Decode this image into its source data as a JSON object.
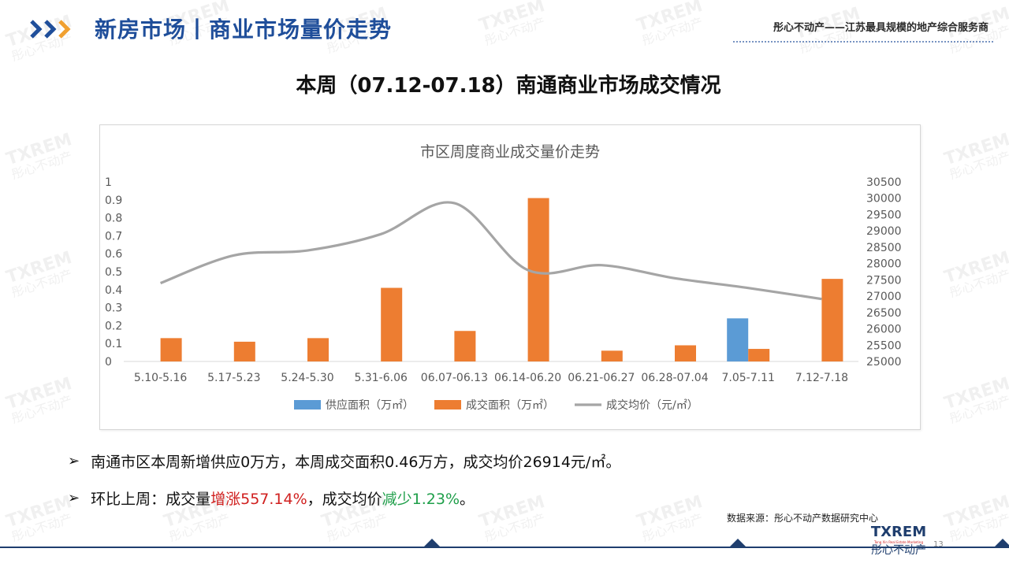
{
  "header": {
    "section_title": "新房市场丨商业市场量价走势",
    "tagline": "彤心不动产——江苏最具规模的地产综合服务商"
  },
  "main_title": "本周（07.12-07.18）南通商业市场成交情况",
  "chart_data": {
    "type": "bar",
    "title": "市区周度商业成交量价走势",
    "categories": [
      "5.10-5.16",
      "5.17-5.23",
      "5.24-5.30",
      "5.31-6.06",
      "06.07-06.13",
      "06.14-06.20",
      "06.21-06.27",
      "06.28-07.04",
      "7.05-7.11",
      "7.12-7.18"
    ],
    "series": [
      {
        "name": "供应面积（万㎡）",
        "type": "bar",
        "axis": "left",
        "color": "#5b9bd5",
        "values": [
          0,
          0,
          0,
          0,
          0,
          0,
          0,
          0,
          0.24,
          0
        ]
      },
      {
        "name": "成交面积（万㎡）",
        "type": "bar",
        "axis": "left",
        "color": "#ed7d31",
        "values": [
          0.13,
          0.11,
          0.13,
          0.41,
          0.17,
          0.91,
          0.06,
          0.09,
          0.07,
          0.46
        ]
      },
      {
        "name": "成交均价（元/㎡）",
        "type": "line",
        "axis": "right",
        "color": "#a5a5a5",
        "smooth": true,
        "values": [
          27400,
          28250,
          28400,
          28900,
          29850,
          27800,
          27950,
          27550,
          27250,
          26914
        ]
      }
    ],
    "y_left": {
      "min": 0,
      "max": 1,
      "ticks": [
        "0",
        "0.1",
        "0.2",
        "0.3",
        "0.4",
        "0.5",
        "0.6",
        "0.7",
        "0.8",
        "0.9",
        "1"
      ]
    },
    "y_right": {
      "min": 25000,
      "max": 30500,
      "ticks": [
        "25000",
        "25500",
        "26000",
        "26500",
        "27000",
        "27500",
        "28000",
        "28500",
        "29000",
        "29500",
        "30000",
        "30500"
      ]
    },
    "legend_position": "bottom",
    "grid": false
  },
  "bullets": [
    {
      "text": "南通市区本周新增供应0万方，本周成交面积0.46万方，成交均价26914元/㎡。"
    },
    {
      "prefix": "环比上周：成交量",
      "highlight_up": "增涨557.14%",
      "middle": "，成交均价",
      "highlight_down": "减少1.23%",
      "suffix": "。"
    }
  ],
  "source": "数据来源：彤心不动产数据研究中心",
  "footer": {
    "logo_text": "TXREM",
    "logo_sub": "Tong Xin Real Estate Marketing",
    "logo_cn": "彤心不动产",
    "page_number": "13"
  },
  "watermark": {
    "text": "TXREM",
    "cn": "彤心不动产"
  },
  "colors": {
    "brand_blue": "#1f4e9a",
    "accent_orange": "#f0a030",
    "up_red": "#d0201f",
    "down_green": "#1f9f4a"
  }
}
